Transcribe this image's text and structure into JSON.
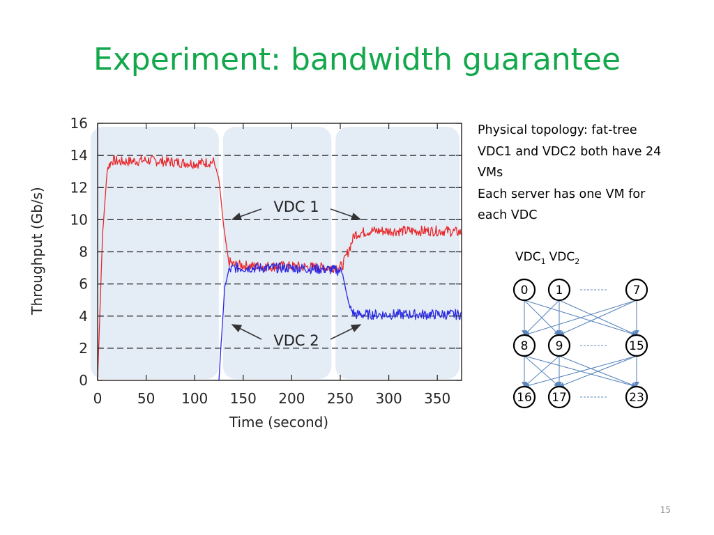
{
  "slide": {
    "title": "Experiment: bandwidth guarantee",
    "number": "15",
    "description": [
      "Physical topology: fat-tree",
      "VDC1 and VDC2 both have 24",
      "VMs",
      "Each server has one VM for",
      "each VDC"
    ]
  },
  "topology": {
    "label_vdc1_main": "VDC",
    "label_vdc1_sub": "1",
    "label_vdc2_main": "VDC",
    "label_vdc2_sub": "2",
    "rows": [
      [
        "0",
        "1",
        "7"
      ],
      [
        "8",
        "9",
        "15"
      ],
      [
        "16",
        "17",
        "23"
      ]
    ],
    "edge_color": "#5b86bd",
    "ellipsis_color": "#5b86bd"
  },
  "chart_data": {
    "type": "line",
    "xlabel": "Time (second)",
    "ylabel": "Throughput (Gb/s)",
    "xlim": [
      0,
      375
    ],
    "ylim": [
      0,
      16
    ],
    "xticks": [
      0,
      50,
      100,
      150,
      200,
      250,
      300,
      350
    ],
    "yticks": [
      0,
      2,
      4,
      6,
      8,
      10,
      12,
      14,
      16
    ],
    "grid": "horizontal dashed",
    "phases": [
      [
        0,
        127
      ],
      [
        127,
        243
      ],
      [
        243,
        375
      ]
    ],
    "series": [
      {
        "name": "VDC 1",
        "color": "#e8282b",
        "x": [
          0,
          5,
          10,
          15,
          25,
          50,
          75,
          100,
          120,
          125,
          130,
          135,
          140,
          160,
          200,
          240,
          252,
          258,
          265,
          280,
          320,
          360,
          375
        ],
        "y": [
          0,
          9,
          13.2,
          13.7,
          13.6,
          13.7,
          13.6,
          13.5,
          13.6,
          12.5,
          9.5,
          7.4,
          7.2,
          7.1,
          7.1,
          7.0,
          7.1,
          8.0,
          9.1,
          9.3,
          9.3,
          9.3,
          9.2
        ]
      },
      {
        "name": "VDC 2",
        "color": "#2727e6",
        "x": [
          125,
          128,
          131,
          135,
          140,
          160,
          200,
          240,
          252,
          256,
          260,
          265,
          280,
          320,
          360,
          375
        ],
        "y": [
          0,
          3,
          5.8,
          6.8,
          7.0,
          7.0,
          7.0,
          6.9,
          6.8,
          5.5,
          4.5,
          4.1,
          4.1,
          4.1,
          4.1,
          4.1
        ]
      }
    ],
    "annotations": [
      {
        "text": "VDC 1"
      },
      {
        "text": "VDC 2"
      }
    ]
  }
}
